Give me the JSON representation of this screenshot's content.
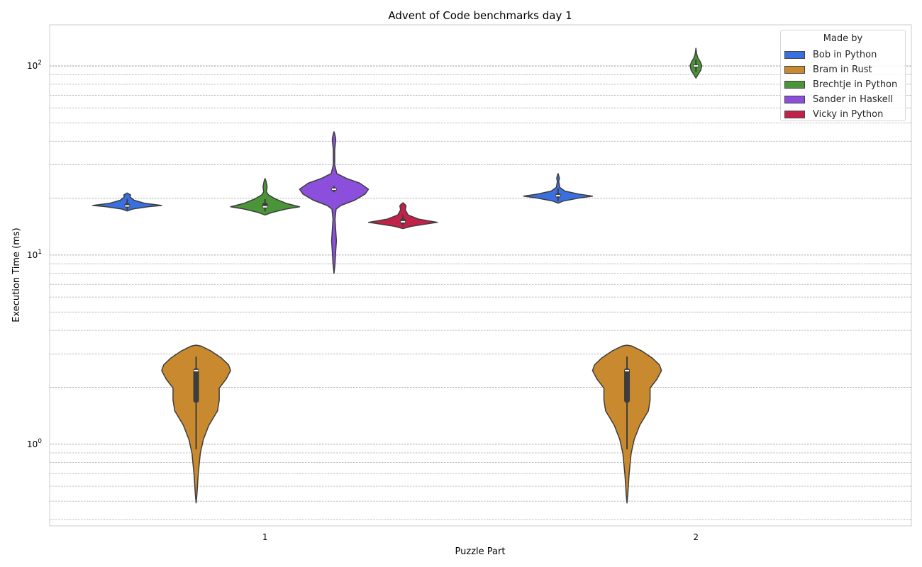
{
  "chart_data": {
    "type": "violin",
    "title": "Advent of Code benchmarks day 1",
    "xlabel": "Puzzle Part",
    "ylabel": "Execution Time (ms)",
    "yscale": "log",
    "ylim": [
      0.37,
      165
    ],
    "yticks": [
      {
        "base": "10",
        "exp": "0",
        "value": 1
      },
      {
        "base": "10",
        "exp": "1",
        "value": 10
      },
      {
        "base": "10",
        "exp": "2",
        "value": 100
      }
    ],
    "grid": true,
    "categories": [
      "1",
      "2"
    ],
    "legend": {
      "title": "Made by",
      "placement": "top-right"
    },
    "series": [
      {
        "name": "Bob in Python",
        "color": "#3a6fe0",
        "violins": [
          {
            "category": "1",
            "profile": [
              [
                17.1,
                0
              ],
              [
                17.5,
                0.15
              ],
              [
                18.0,
                0.6
              ],
              [
                18.3,
                1
              ],
              [
                18.8,
                0.5
              ],
              [
                19.5,
                0.2
              ],
              [
                20.3,
                0.08
              ],
              [
                20.8,
                0.1
              ],
              [
                21.3,
                0
              ]
            ],
            "box": {
              "whisker_low": 17.3,
              "q1": 17.8,
              "median": 18.2,
              "q3": 18.8,
              "whisker_high": 19.8
            }
          },
          {
            "category": "2",
            "profile": [
              [
                18.8,
                0
              ],
              [
                19.3,
                0.15
              ],
              [
                20.0,
                0.6
              ],
              [
                20.5,
                1
              ],
              [
                21.0,
                0.6
              ],
              [
                21.8,
                0.2
              ],
              [
                22.8,
                0.05
              ],
              [
                24.5,
                0.02
              ],
              [
                25.5,
                0.04
              ],
              [
                27.0,
                0
              ]
            ],
            "box": {
              "whisker_low": 19.3,
              "q1": 20.1,
              "median": 20.6,
              "q3": 21.2,
              "whisker_high": 22.5
            }
          }
        ]
      },
      {
        "name": "Bram in Rust",
        "color": "#c98a2f",
        "violins": [
          {
            "category": "1",
            "profile": [
              [
                0.489,
                0
              ],
              [
                0.533,
                0.02
              ],
              [
                0.69,
                0.06
              ],
              [
                0.894,
                0.12
              ],
              [
                1.06,
                0.21
              ],
              [
                1.26,
                0.37
              ],
              [
                1.5,
                0.62
              ],
              [
                1.71,
                0.67
              ],
              [
                1.98,
                0.67
              ],
              [
                2.21,
                0.87
              ],
              [
                2.45,
                1
              ],
              [
                2.63,
                0.94
              ],
              [
                2.86,
                0.73
              ],
              [
                3.12,
                0.42
              ],
              [
                3.3,
                0.15
              ],
              [
                3.34,
                0
              ]
            ],
            "box": {
              "whisker_low": 0.94,
              "q1": 1.66,
              "median": 2.45,
              "q3": 2.52,
              "whisker_high": 2.91
            }
          },
          {
            "category": "2",
            "profile": [
              [
                0.489,
                0
              ],
              [
                0.533,
                0.02
              ],
              [
                0.69,
                0.06
              ],
              [
                0.894,
                0.12
              ],
              [
                1.06,
                0.21
              ],
              [
                1.26,
                0.37
              ],
              [
                1.5,
                0.62
              ],
              [
                1.71,
                0.67
              ],
              [
                1.98,
                0.67
              ],
              [
                2.21,
                0.87
              ],
              [
                2.45,
                1
              ],
              [
                2.63,
                0.94
              ],
              [
                2.86,
                0.73
              ],
              [
                3.12,
                0.42
              ],
              [
                3.3,
                0.15
              ],
              [
                3.34,
                0
              ]
            ],
            "box": {
              "whisker_low": 0.94,
              "q1": 1.66,
              "median": 2.45,
              "q3": 2.52,
              "whisker_high": 2.91
            }
          }
        ]
      },
      {
        "name": "Brechtje in Python",
        "color": "#4a9537",
        "violins": [
          {
            "category": "1",
            "profile": [
              [
                16.3,
                0
              ],
              [
                16.8,
                0.2
              ],
              [
                17.5,
                0.6
              ],
              [
                18.0,
                1
              ],
              [
                18.8,
                0.6
              ],
              [
                19.8,
                0.3
              ],
              [
                20.8,
                0.1
              ],
              [
                21.6,
                0.04
              ],
              [
                23.0,
                0.06
              ],
              [
                24.5,
                0.03
              ],
              [
                25.4,
                0
              ]
            ],
            "box": {
              "whisker_low": 17.0,
              "q1": 17.6,
              "median": 18.0,
              "q3": 18.9,
              "whisker_high": 19.8
            }
          },
          {
            "category": "2",
            "profile": [
              [
                86.3,
                0
              ],
              [
                90,
                0.06
              ],
              [
                95,
                0.14
              ],
              [
                100,
                0.17
              ],
              [
                105,
                0.13
              ],
              [
                110,
                0.06
              ],
              [
                116,
                0.02
              ],
              [
                124,
                0
              ]
            ],
            "box": {
              "whisker_low": 93,
              "q1": 98,
              "median": 100,
              "q3": 102,
              "whisker_high": 108
            }
          }
        ]
      },
      {
        "name": "Sander in Haskell",
        "color": "#8b4fdb",
        "violins": [
          {
            "category": "1",
            "profile": [
              [
                8.0,
                0
              ],
              [
                9.0,
                0.03
              ],
              [
                10.5,
                0.05
              ],
              [
                11.9,
                0.07
              ],
              [
                13.5,
                0.05
              ],
              [
                15.5,
                0.03
              ],
              [
                17.5,
                0.06
              ],
              [
                18.3,
                0.2
              ],
              [
                19.5,
                0.6
              ],
              [
                21,
                0.9
              ],
              [
                22.3,
                1
              ],
              [
                24,
                0.75
              ],
              [
                25.5,
                0.35
              ],
              [
                27,
                0.08
              ],
              [
                30,
                0.02
              ],
              [
                36,
                0.02
              ],
              [
                39,
                0.04
              ],
              [
                41,
                0.05
              ],
              [
                43,
                0.03
              ],
              [
                44.9,
                0
              ]
            ],
            "box": {
              "whisker_low": 21.5,
              "q1": 21.8,
              "median": 22.3,
              "q3": 22.8,
              "whisker_high": 23.2
            }
          }
        ]
      },
      {
        "name": "Vicky in Python",
        "color": "#c2224a",
        "violins": [
          {
            "category": "1",
            "profile": [
              [
                13.8,
                0
              ],
              [
                14.2,
                0.25
              ],
              [
                14.9,
                1
              ],
              [
                15.5,
                0.45
              ],
              [
                16.3,
                0.15
              ],
              [
                17.3,
                0.07
              ],
              [
                17.8,
                0.08
              ],
              [
                18.2,
                0.09
              ],
              [
                18.6,
                0.05
              ],
              [
                18.9,
                0
              ]
            ],
            "box": {
              "whisker_low": 14.3,
              "q1": 14.6,
              "median": 15.0,
              "q3": 15.6,
              "whisker_high": 16.3
            }
          }
        ]
      }
    ]
  }
}
